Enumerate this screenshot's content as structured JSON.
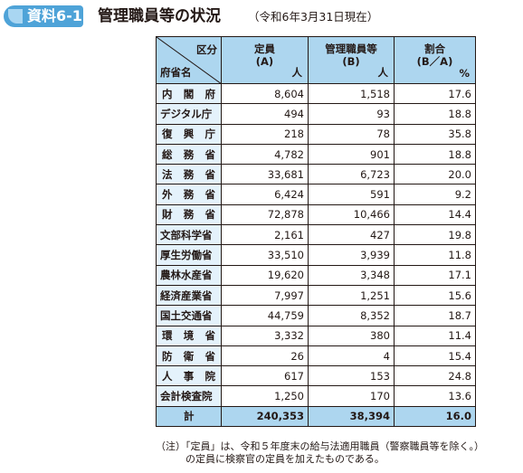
{
  "header": {
    "badge": "資料6-1",
    "title": "管理職員等の状況",
    "subtitle": "（令和6年3月31日現在）"
  },
  "table": {
    "corner_top": "区分",
    "corner_bottom": "府省名",
    "columns": [
      {
        "line1": "定員",
        "line2": "(A)",
        "unit": "人"
      },
      {
        "line1": "管理職員等",
        "line2": "(B)",
        "unit": "人"
      },
      {
        "line1": "割合",
        "line2": "(B／A)",
        "unit": "%"
      }
    ],
    "rows": [
      {
        "name": "内閣府",
        "a": "8,604",
        "b": "1,518",
        "ratio": "17.6"
      },
      {
        "name": "デジタル庁",
        "a": "494",
        "b": "93",
        "ratio": "18.8"
      },
      {
        "name": "復興庁",
        "a": "218",
        "b": "78",
        "ratio": "35.8"
      },
      {
        "name": "総務省",
        "a": "4,782",
        "b": "901",
        "ratio": "18.8"
      },
      {
        "name": "法務省",
        "a": "33,681",
        "b": "6,723",
        "ratio": "20.0"
      },
      {
        "name": "外務省",
        "a": "6,424",
        "b": "591",
        "ratio": "9.2"
      },
      {
        "name": "財務省",
        "a": "72,878",
        "b": "10,466",
        "ratio": "14.4"
      },
      {
        "name": "文部科学省",
        "a": "2,161",
        "b": "427",
        "ratio": "19.8"
      },
      {
        "name": "厚生労働省",
        "a": "33,510",
        "b": "3,939",
        "ratio": "11.8"
      },
      {
        "name": "農林水産省",
        "a": "19,620",
        "b": "3,348",
        "ratio": "17.1"
      },
      {
        "name": "経済産業省",
        "a": "7,997",
        "b": "1,251",
        "ratio": "15.6"
      },
      {
        "name": "国土交通省",
        "a": "44,759",
        "b": "8,352",
        "ratio": "18.7"
      },
      {
        "name": "環境省",
        "a": "3,332",
        "b": "380",
        "ratio": "11.4"
      },
      {
        "name": "防衛省",
        "a": "26",
        "b": "4",
        "ratio": "15.4"
      },
      {
        "name": "人事院",
        "a": "617",
        "b": "153",
        "ratio": "24.8"
      },
      {
        "name": "会計検査院",
        "a": "1,250",
        "b": "170",
        "ratio": "13.6"
      }
    ],
    "total": {
      "name": "計",
      "a": "240,353",
      "b": "38,394",
      "ratio": "16.0"
    }
  },
  "note": {
    "line1": "（注）「定員」は、令和５年度末の給与法適用職員（警察職員等を除く。）",
    "line2": "の定員に検察官の定員を加えたものである。"
  },
  "colors": {
    "accent": "#4ea3d8",
    "header_fill": "#add6ef",
    "name_fill": "#e4f2fb"
  }
}
